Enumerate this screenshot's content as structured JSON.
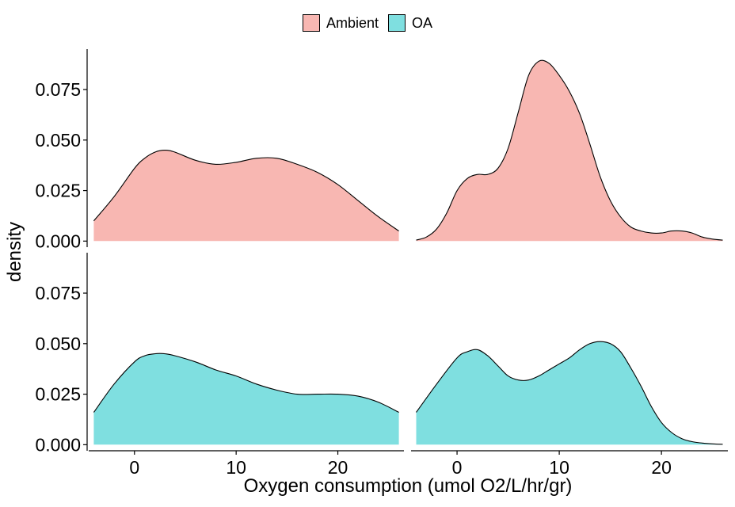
{
  "chart_data": {
    "type": "area",
    "xlabel": "Oxygen consumption (umol O2/L/hr/gr)",
    "ylabel": "density",
    "x_ticks": [
      0,
      10,
      20
    ],
    "y_ticks": [
      0,
      0.025,
      0.05,
      0.075
    ],
    "y_tick_labels": [
      "0.000",
      "0.025",
      "0.050",
      "0.075"
    ],
    "xlim": [
      -4.5,
      26.5
    ],
    "ylim": [
      -0.003,
      0.095
    ],
    "grid": false,
    "legend": {
      "position": "top",
      "entries": [
        {
          "name": "Ambient",
          "color": "#F8B7B2"
        },
        {
          "name": "OA",
          "color": "#7FDFE0"
        }
      ]
    },
    "panels": [
      {
        "row": 0,
        "col": 0,
        "series": "Ambient",
        "x": [
          -4,
          -2,
          0,
          1,
          2,
          3,
          4,
          6,
          8,
          10,
          12,
          14,
          16,
          18,
          20,
          22,
          24,
          26
        ],
        "y": [
          0.01,
          0.022,
          0.036,
          0.041,
          0.044,
          0.045,
          0.044,
          0.04,
          0.038,
          0.039,
          0.041,
          0.041,
          0.038,
          0.034,
          0.028,
          0.02,
          0.012,
          0.005
        ]
      },
      {
        "row": 0,
        "col": 1,
        "series": "Ambient",
        "x": [
          -4,
          -3,
          -2,
          -1,
          0,
          1,
          2,
          3,
          4,
          5,
          6,
          7,
          8,
          9,
          10,
          11,
          12,
          13,
          14,
          15,
          16,
          17,
          18,
          19,
          20,
          21,
          22,
          23,
          24,
          25,
          26
        ],
        "y": [
          0.0005,
          0.002,
          0.006,
          0.014,
          0.025,
          0.031,
          0.033,
          0.033,
          0.036,
          0.046,
          0.064,
          0.082,
          0.089,
          0.088,
          0.082,
          0.074,
          0.063,
          0.048,
          0.032,
          0.02,
          0.012,
          0.007,
          0.005,
          0.004,
          0.004,
          0.005,
          0.005,
          0.004,
          0.002,
          0.001,
          0.0005
        ]
      },
      {
        "row": 1,
        "col": 0,
        "series": "OA",
        "x": [
          -4,
          -2,
          0,
          1,
          2,
          3,
          4,
          6,
          8,
          10,
          12,
          14,
          16,
          18,
          20,
          22,
          24,
          26
        ],
        "y": [
          0.016,
          0.03,
          0.041,
          0.044,
          0.045,
          0.045,
          0.044,
          0.041,
          0.037,
          0.034,
          0.03,
          0.027,
          0.025,
          0.025,
          0.025,
          0.024,
          0.021,
          0.016
        ]
      },
      {
        "row": 1,
        "col": 1,
        "series": "OA",
        "x": [
          -4,
          -2,
          0,
          1,
          2,
          3,
          4,
          5,
          6,
          7,
          8,
          9,
          10,
          11,
          12,
          13,
          14,
          15,
          16,
          17,
          18,
          19,
          20,
          21,
          22,
          23,
          24,
          25,
          26
        ],
        "y": [
          0.016,
          0.03,
          0.043,
          0.046,
          0.047,
          0.044,
          0.039,
          0.034,
          0.032,
          0.032,
          0.034,
          0.037,
          0.04,
          0.043,
          0.047,
          0.05,
          0.051,
          0.05,
          0.046,
          0.038,
          0.029,
          0.019,
          0.011,
          0.006,
          0.003,
          0.0015,
          0.0008,
          0.0004,
          0.0002
        ]
      }
    ]
  }
}
